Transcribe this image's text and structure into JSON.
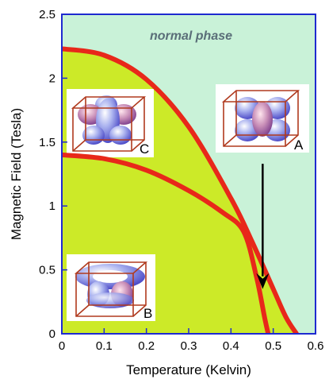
{
  "chart_data": {
    "type": "line",
    "title": "",
    "xlabel": "Temperature (Kelvin)",
    "ylabel": "Magnetic Field (Tesla)",
    "xlim": [
      0,
      0.6
    ],
    "ylim": [
      0,
      2.5
    ],
    "x_ticks": [
      "0",
      "0.1",
      "0.2",
      "0.3",
      "0.4",
      "0.5",
      "0.6"
    ],
    "y_ticks": [
      "0",
      "0.5",
      "1",
      "1.5",
      "2",
      "2.5"
    ],
    "grid": false,
    "region_label": "normal phase",
    "colors": {
      "normal_region": "#c9f2d8",
      "superconducting_region": "#ccea28",
      "boundary": "#e8281a",
      "axis": "#1e2ad0",
      "arrow": "#000000",
      "inset_box": "#b03a1e"
    },
    "series": [
      {
        "x": [
          0,
          0.1,
          0.2,
          0.3,
          0.4,
          0.45,
          0.5,
          0.53,
          0.555
        ],
        "y": [
          2.23,
          2.18,
          1.99,
          1.62,
          1.06,
          0.72,
          0.35,
          0.13,
          0
        ]
      },
      {
        "x": [
          0,
          0.1,
          0.2,
          0.3,
          0.38,
          0.43,
          0.46,
          0.48,
          0.488
        ],
        "y": [
          1.4,
          1.37,
          1.28,
          1.12,
          0.95,
          0.8,
          0.45,
          0.12,
          0
        ]
      }
    ],
    "arrow": {
      "x": 0.475,
      "y_from": 1.33,
      "y_to": 0.35
    },
    "insets": [
      {
        "label": "A",
        "icon": "order-parameter-cube-icon"
      },
      {
        "label": "B",
        "icon": "order-parameter-cube-icon"
      },
      {
        "label": "C",
        "icon": "order-parameter-cube-icon"
      }
    ]
  }
}
